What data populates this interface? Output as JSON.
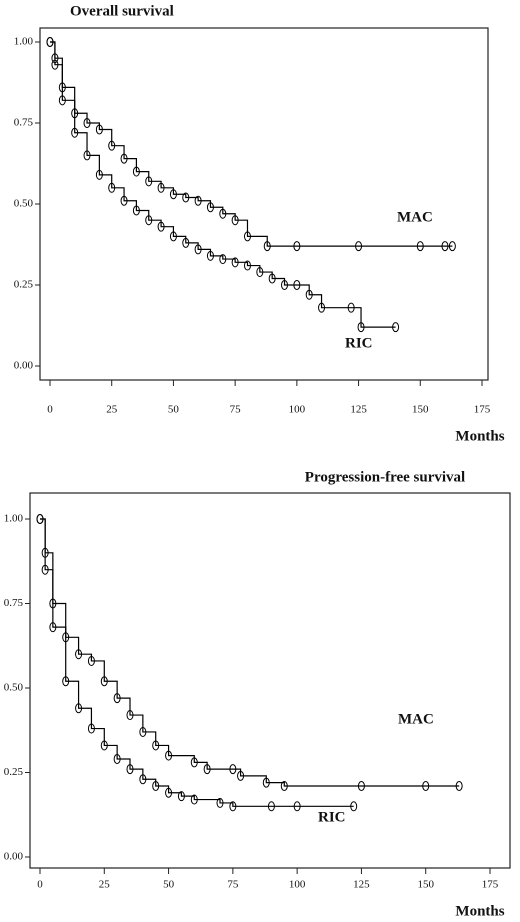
{
  "chart_data": [
    {
      "type": "km",
      "title": "Overall survival",
      "x_label": "Months",
      "xlim": [
        0,
        175
      ],
      "xticks": [
        0,
        25,
        50,
        75,
        100,
        125,
        150,
        175
      ],
      "ylim": [
        0,
        1
      ],
      "yticks": [
        {
          "value": 0,
          "label": "0.00"
        },
        0.25,
        {
          "value": 0.5,
          "label": "0.50"
        },
        0.75,
        {
          "value": 1,
          "label": "1.00"
        }
      ],
      "series": [
        {
          "name": "MAC",
          "color": "#000000",
          "x": [
            0,
            2,
            5,
            10,
            15,
            20,
            25,
            30,
            35,
            40,
            45,
            50,
            55,
            60,
            65,
            70,
            75,
            80,
            88,
            100,
            125,
            150,
            160,
            163
          ],
          "values": [
            1.0,
            0.95,
            0.86,
            0.78,
            0.75,
            0.73,
            0.68,
            0.64,
            0.6,
            0.57,
            0.55,
            0.53,
            0.52,
            0.51,
            0.49,
            0.47,
            0.45,
            0.4,
            0.37,
            0.37,
            0.37,
            0.37,
            0.37,
            0.37
          ]
        },
        {
          "name": "RIC",
          "color": "#000000",
          "x": [
            0,
            2,
            5,
            10,
            15,
            20,
            25,
            30,
            35,
            40,
            45,
            50,
            55,
            60,
            65,
            70,
            75,
            80,
            85,
            90,
            95,
            100,
            105,
            110,
            122,
            126,
            140
          ],
          "values": [
            1.0,
            0.93,
            0.82,
            0.72,
            0.65,
            0.59,
            0.55,
            0.51,
            0.48,
            0.45,
            0.43,
            0.4,
            0.38,
            0.36,
            0.34,
            0.33,
            0.32,
            0.31,
            0.29,
            0.27,
            0.25,
            0.25,
            0.22,
            0.18,
            0.18,
            0.12,
            0.12
          ]
        }
      ]
    },
    {
      "type": "km",
      "title": "Progression-free survival",
      "x_label": "Months",
      "xlim": [
        0,
        175
      ],
      "xticks": [
        0,
        25,
        50,
        75,
        100,
        125,
        150,
        175
      ],
      "ylim": [
        0,
        1
      ],
      "yticks": [
        {
          "value": 0,
          "label": "0.00"
        },
        0.25,
        {
          "value": 0.5,
          "label": "0.50"
        },
        0.75,
        {
          "value": 1,
          "label": "1.00"
        }
      ],
      "series": [
        {
          "name": "MAC",
          "color": "#000000",
          "x": [
            0,
            2,
            5,
            10,
            15,
            20,
            25,
            30,
            35,
            40,
            45,
            50,
            60,
            65,
            75,
            78,
            88,
            95,
            125,
            150,
            163
          ],
          "values": [
            1.0,
            0.9,
            0.75,
            0.65,
            0.6,
            0.58,
            0.52,
            0.47,
            0.42,
            0.37,
            0.33,
            0.3,
            0.28,
            0.26,
            0.26,
            0.24,
            0.22,
            0.21,
            0.21,
            0.21,
            0.21
          ]
        },
        {
          "name": "RIC",
          "color": "#000000",
          "x": [
            0,
            2,
            5,
            10,
            15,
            20,
            25,
            30,
            35,
            40,
            45,
            50,
            55,
            60,
            70,
            75,
            90,
            100,
            122
          ],
          "values": [
            1.0,
            0.85,
            0.68,
            0.52,
            0.44,
            0.38,
            0.33,
            0.29,
            0.26,
            0.23,
            0.21,
            0.19,
            0.18,
            0.17,
            0.16,
            0.15,
            0.15,
            0.15,
            0.15
          ]
        }
      ]
    }
  ]
}
